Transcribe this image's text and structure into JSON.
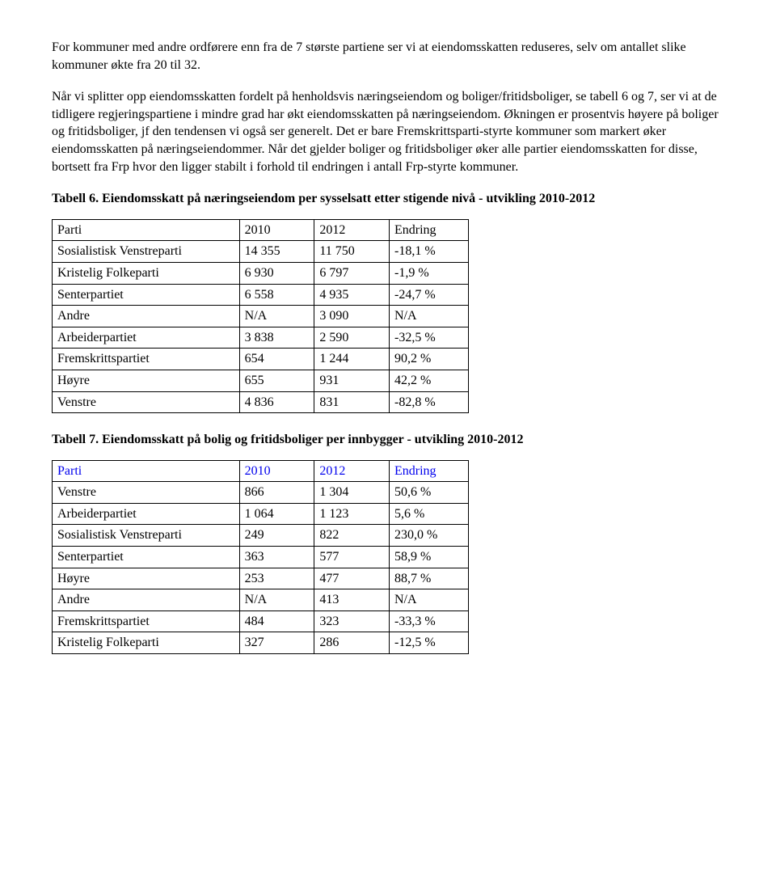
{
  "p1": "For kommuner med andre ordførere enn fra de 7 største partiene ser vi at eiendomsskatten reduseres, selv om antallet slike kommuner økte fra 20 til 32.",
  "p2": "Når vi splitter opp eiendomsskatten fordelt på henholdsvis næringseiendom og boliger/fritidsboliger, se tabell 6 og 7, ser vi at de tidligere regjeringspartiene i mindre grad har økt eiendomsskatten på næringseiendom. Økningen er prosentvis høyere på boliger og fritidsboliger, jf den tendensen vi også ser generelt. Det er bare Fremskrittsparti-styrte kommuner som markert øker eiendomsskatten på næringseiendommer. Når det gjelder boliger og fritidsboliger øker alle partier eiendomsskatten for disse, bortsett fra Frp hvor den ligger stabilt i forhold til endringen i antall Frp-styrte kommuner.",
  "t6_title": "Tabell 6. Eiendomsskatt på næringseiendom per sysselsatt etter stigende nivå - utvikling 2010-2012",
  "t7_title": "Tabell 7. Eiendomsskatt på bolig og fritidsboliger per innbygger - utvikling 2010-2012",
  "table6": {
    "header_link_style": false,
    "columns": [
      "Parti",
      "2010",
      "2012",
      "Endring"
    ],
    "rows": [
      [
        "Sosialistisk Venstreparti",
        "14 355",
        "11 750",
        "-18,1 %"
      ],
      [
        "Kristelig Folkeparti",
        "6 930",
        "6 797",
        "-1,9 %"
      ],
      [
        "Senterpartiet",
        "6 558",
        "4 935",
        "-24,7 %"
      ],
      [
        "Andre",
        "N/A",
        "3 090",
        "N/A"
      ],
      [
        "Arbeiderpartiet",
        "3 838",
        "2 590",
        "-32,5 %"
      ],
      [
        "Fremskrittspartiet",
        "654",
        "1 244",
        "90,2 %"
      ],
      [
        "Høyre",
        "655",
        "931",
        "42,2 %"
      ],
      [
        "Venstre",
        "4 836",
        "831",
        "-82,8 %"
      ]
    ]
  },
  "table7": {
    "header_link_style": true,
    "columns": [
      "Parti",
      "2010",
      "2012",
      "Endring"
    ],
    "rows": [
      [
        "Venstre",
        "866",
        "1 304",
        "50,6 %"
      ],
      [
        "Arbeiderpartiet",
        "1 064",
        "1 123",
        "5,6 %"
      ],
      [
        "Sosialistisk Venstreparti",
        "249",
        "822",
        "230,0 %"
      ],
      [
        "Senterpartiet",
        "363",
        "577",
        "58,9 %"
      ],
      [
        "Høyre",
        "253",
        "477",
        "88,7 %"
      ],
      [
        "Andre",
        "N/A",
        "413",
        "N/A"
      ],
      [
        "Fremskrittspartiet",
        "484",
        "323",
        "-33,3 %"
      ],
      [
        "Kristelig Folkeparti",
        "327",
        "286",
        "-12,5 %"
      ]
    ]
  }
}
